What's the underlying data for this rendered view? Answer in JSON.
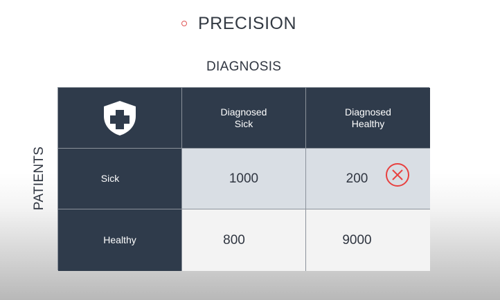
{
  "slide": {
    "title": "PRECISION",
    "col_header": "DIAGNOSIS",
    "row_header": "PATIENTS"
  },
  "matrix": {
    "columns": [
      "Diagnosed\nSick",
      "Diagnosed\nHealthy"
    ],
    "rows": [
      {
        "label": "Sick",
        "values": [
          "1000",
          "200"
        ]
      },
      {
        "label": "Healthy",
        "values": [
          "800",
          "9000"
        ]
      }
    ]
  },
  "icons": {
    "corner": "shield-plus-icon",
    "error_mark": "x-circle-icon"
  },
  "colors": {
    "header_cell": "#2f3b4b",
    "highlight_row": "#d9dee4",
    "plain_row": "#f3f3f3",
    "bullet": "#e05555",
    "x_mark": "#e8403f"
  }
}
